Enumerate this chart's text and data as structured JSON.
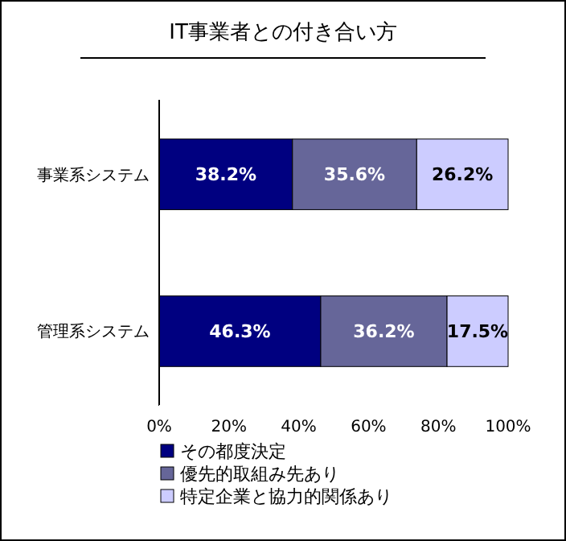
{
  "chart_data": {
    "type": "bar",
    "orientation": "horizontal",
    "stacked": true,
    "title": "IT事業者との付き合い方",
    "categories": [
      "事業系システム",
      "管理系システム"
    ],
    "series": [
      {
        "name": "その都度決定",
        "color": "#000080",
        "values": [
          38.2,
          46.3
        ],
        "value_labels": [
          "38.2%",
          "46.3%"
        ]
      },
      {
        "name": "優先的取組み先あり",
        "color": "#666699",
        "values": [
          35.6,
          36.2
        ],
        "value_labels": [
          "35.6%",
          "36.2%"
        ]
      },
      {
        "name": "特定企業と協力的関係あり",
        "color": "#ccccff",
        "values": [
          26.2,
          17.5
        ],
        "value_labels": [
          "26.2%",
          "17.5%"
        ]
      }
    ],
    "xlim": [
      0,
      100
    ],
    "xticks": [
      {
        "value": 0,
        "label": "0%"
      },
      {
        "value": 20,
        "label": "20%"
      },
      {
        "value": 40,
        "label": "40%"
      },
      {
        "value": 60,
        "label": "60%"
      },
      {
        "value": 80,
        "label": "80%"
      },
      {
        "value": 100,
        "label": "100%"
      }
    ],
    "legend": "bottom left",
    "grid": false
  }
}
